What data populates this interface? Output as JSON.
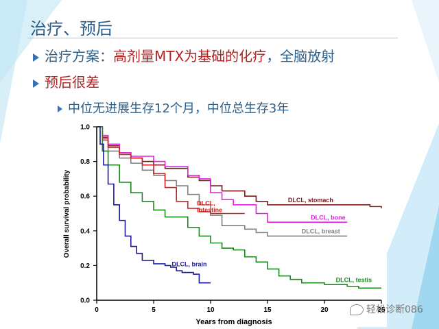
{
  "slide": {
    "title": "治疗、预后",
    "bullet1_prefix": "治疗方案：",
    "bullet1_highlight": "高剂量MTX为基础的化疗",
    "bullet1_suffix": "，全脑放射",
    "bullet2": "预后很差",
    "sub_bullet": "中位无进展生存12个月，中位总生存3年",
    "watermark": "轻松诊断086",
    "colors": {
      "title": "#2a5a8a",
      "text": "#2c5e88",
      "highlight": "#b22222",
      "accent": "#6cc4e8"
    }
  },
  "chart_data": {
    "type": "line",
    "title": "",
    "xlabel": "Years from diagnosis",
    "ylabel": "Overall survival probability",
    "xlim": [
      0,
      25
    ],
    "ylim": [
      0,
      1
    ],
    "x_ticks": [
      0,
      5,
      10,
      15,
      20,
      25
    ],
    "y_ticks": [
      0.0,
      0.2,
      0.4,
      0.6,
      0.8,
      1.0
    ],
    "x_tick_labels": [
      "0",
      "5",
      "10",
      "15",
      "20",
      "25"
    ],
    "y_tick_labels": [
      "0.0",
      "0.2",
      "0.4",
      "0.6",
      "0.8",
      "1.0"
    ],
    "grid": false,
    "series": [
      {
        "name": "DLCL, stomach",
        "color": "#7a1a1a",
        "points": [
          [
            0,
            1
          ],
          [
            0.5,
            0.94
          ],
          [
            1,
            0.89
          ],
          [
            2,
            0.85
          ],
          [
            3,
            0.82
          ],
          [
            4,
            0.8
          ],
          [
            5,
            0.78
          ],
          [
            6,
            0.76
          ],
          [
            8,
            0.71
          ],
          [
            9,
            0.69
          ],
          [
            10,
            0.66
          ],
          [
            11,
            0.63
          ],
          [
            13,
            0.6
          ],
          [
            14,
            0.57
          ],
          [
            15,
            0.55
          ],
          [
            20,
            0.55
          ],
          [
            24,
            0.54
          ],
          [
            25,
            0.53
          ]
        ]
      },
      {
        "name": "DLCL, bone",
        "color": "#e020e0",
        "points": [
          [
            0,
            1
          ],
          [
            0.5,
            0.95
          ],
          [
            1,
            0.9
          ],
          [
            2,
            0.85
          ],
          [
            3,
            0.83
          ],
          [
            5,
            0.8
          ],
          [
            6,
            0.77
          ],
          [
            8,
            0.72
          ],
          [
            9,
            0.7
          ],
          [
            10,
            0.62
          ],
          [
            11,
            0.58
          ],
          [
            12,
            0.55
          ],
          [
            14,
            0.5
          ],
          [
            15,
            0.45
          ],
          [
            20,
            0.45
          ],
          [
            22,
            0.45
          ]
        ]
      },
      {
        "name": "DLCL, breast",
        "color": "#808080",
        "points": [
          [
            0,
            1
          ],
          [
            0.5,
            0.92
          ],
          [
            1,
            0.86
          ],
          [
            2,
            0.82
          ],
          [
            3,
            0.79
          ],
          [
            4,
            0.75
          ],
          [
            5,
            0.72
          ],
          [
            6,
            0.69
          ],
          [
            7,
            0.66
          ],
          [
            8,
            0.61
          ],
          [
            9,
            0.55
          ],
          [
            10,
            0.49
          ],
          [
            11,
            0.43
          ],
          [
            13,
            0.41
          ],
          [
            14,
            0.39
          ],
          [
            15,
            0.37
          ],
          [
            17,
            0.37
          ],
          [
            22,
            0.37
          ]
        ]
      },
      {
        "name": "DLCL, intestine",
        "color": "#d02020",
        "points": [
          [
            0,
            1
          ],
          [
            0.5,
            0.93
          ],
          [
            1,
            0.88
          ],
          [
            2,
            0.84
          ],
          [
            3,
            0.82
          ],
          [
            4,
            0.78
          ],
          [
            5,
            0.73
          ],
          [
            6,
            0.65
          ],
          [
            7,
            0.57
          ],
          [
            8,
            0.53
          ],
          [
            9,
            0.51
          ],
          [
            10,
            0.5
          ],
          [
            13,
            0.5
          ]
        ]
      },
      {
        "name": "DLCL, testis",
        "color": "#1a8a1a",
        "points": [
          [
            0,
            1
          ],
          [
            0.5,
            0.86
          ],
          [
            1,
            0.78
          ],
          [
            2,
            0.68
          ],
          [
            3,
            0.62
          ],
          [
            4,
            0.57
          ],
          [
            5,
            0.52
          ],
          [
            6,
            0.48
          ],
          [
            8,
            0.42
          ],
          [
            9,
            0.37
          ],
          [
            10,
            0.33
          ],
          [
            11,
            0.3
          ],
          [
            12,
            0.29
          ],
          [
            13,
            0.25
          ],
          [
            14,
            0.22
          ],
          [
            15,
            0.18
          ],
          [
            16,
            0.14
          ],
          [
            17,
            0.12
          ],
          [
            18,
            0.1
          ],
          [
            20,
            0.09
          ],
          [
            22,
            0.08
          ],
          [
            23,
            0.07
          ],
          [
            25,
            0.07
          ]
        ]
      },
      {
        "name": "DLCL, brain",
        "color": "#1a1a9a",
        "points": [
          [
            0,
            1
          ],
          [
            0.3,
            0.9
          ],
          [
            0.6,
            0.78
          ],
          [
            1,
            0.67
          ],
          [
            1.5,
            0.55
          ],
          [
            2,
            0.46
          ],
          [
            2.5,
            0.37
          ],
          [
            3,
            0.31
          ],
          [
            3.5,
            0.27
          ],
          [
            4,
            0.23
          ],
          [
            5,
            0.21
          ],
          [
            6,
            0.2
          ],
          [
            6.5,
            0.19
          ],
          [
            7,
            0.17
          ],
          [
            7.5,
            0.16
          ],
          [
            8,
            0.16
          ],
          [
            8.5,
            0.15
          ],
          [
            9,
            0.1
          ],
          [
            10,
            0.1
          ]
        ]
      }
    ],
    "label_positions": {
      "DLCL, stomach": [
        16.8,
        0.565
      ],
      "DLCL, bone": [
        18.8,
        0.465
      ],
      "DLCL, breast": [
        18.0,
        0.385
      ],
      "DLCL, intestine": [
        8.8,
        0.52
      ],
      "DLCL, testis": [
        21.0,
        0.105
      ],
      "DLCL, brain": [
        6.6,
        0.195
      ]
    }
  }
}
